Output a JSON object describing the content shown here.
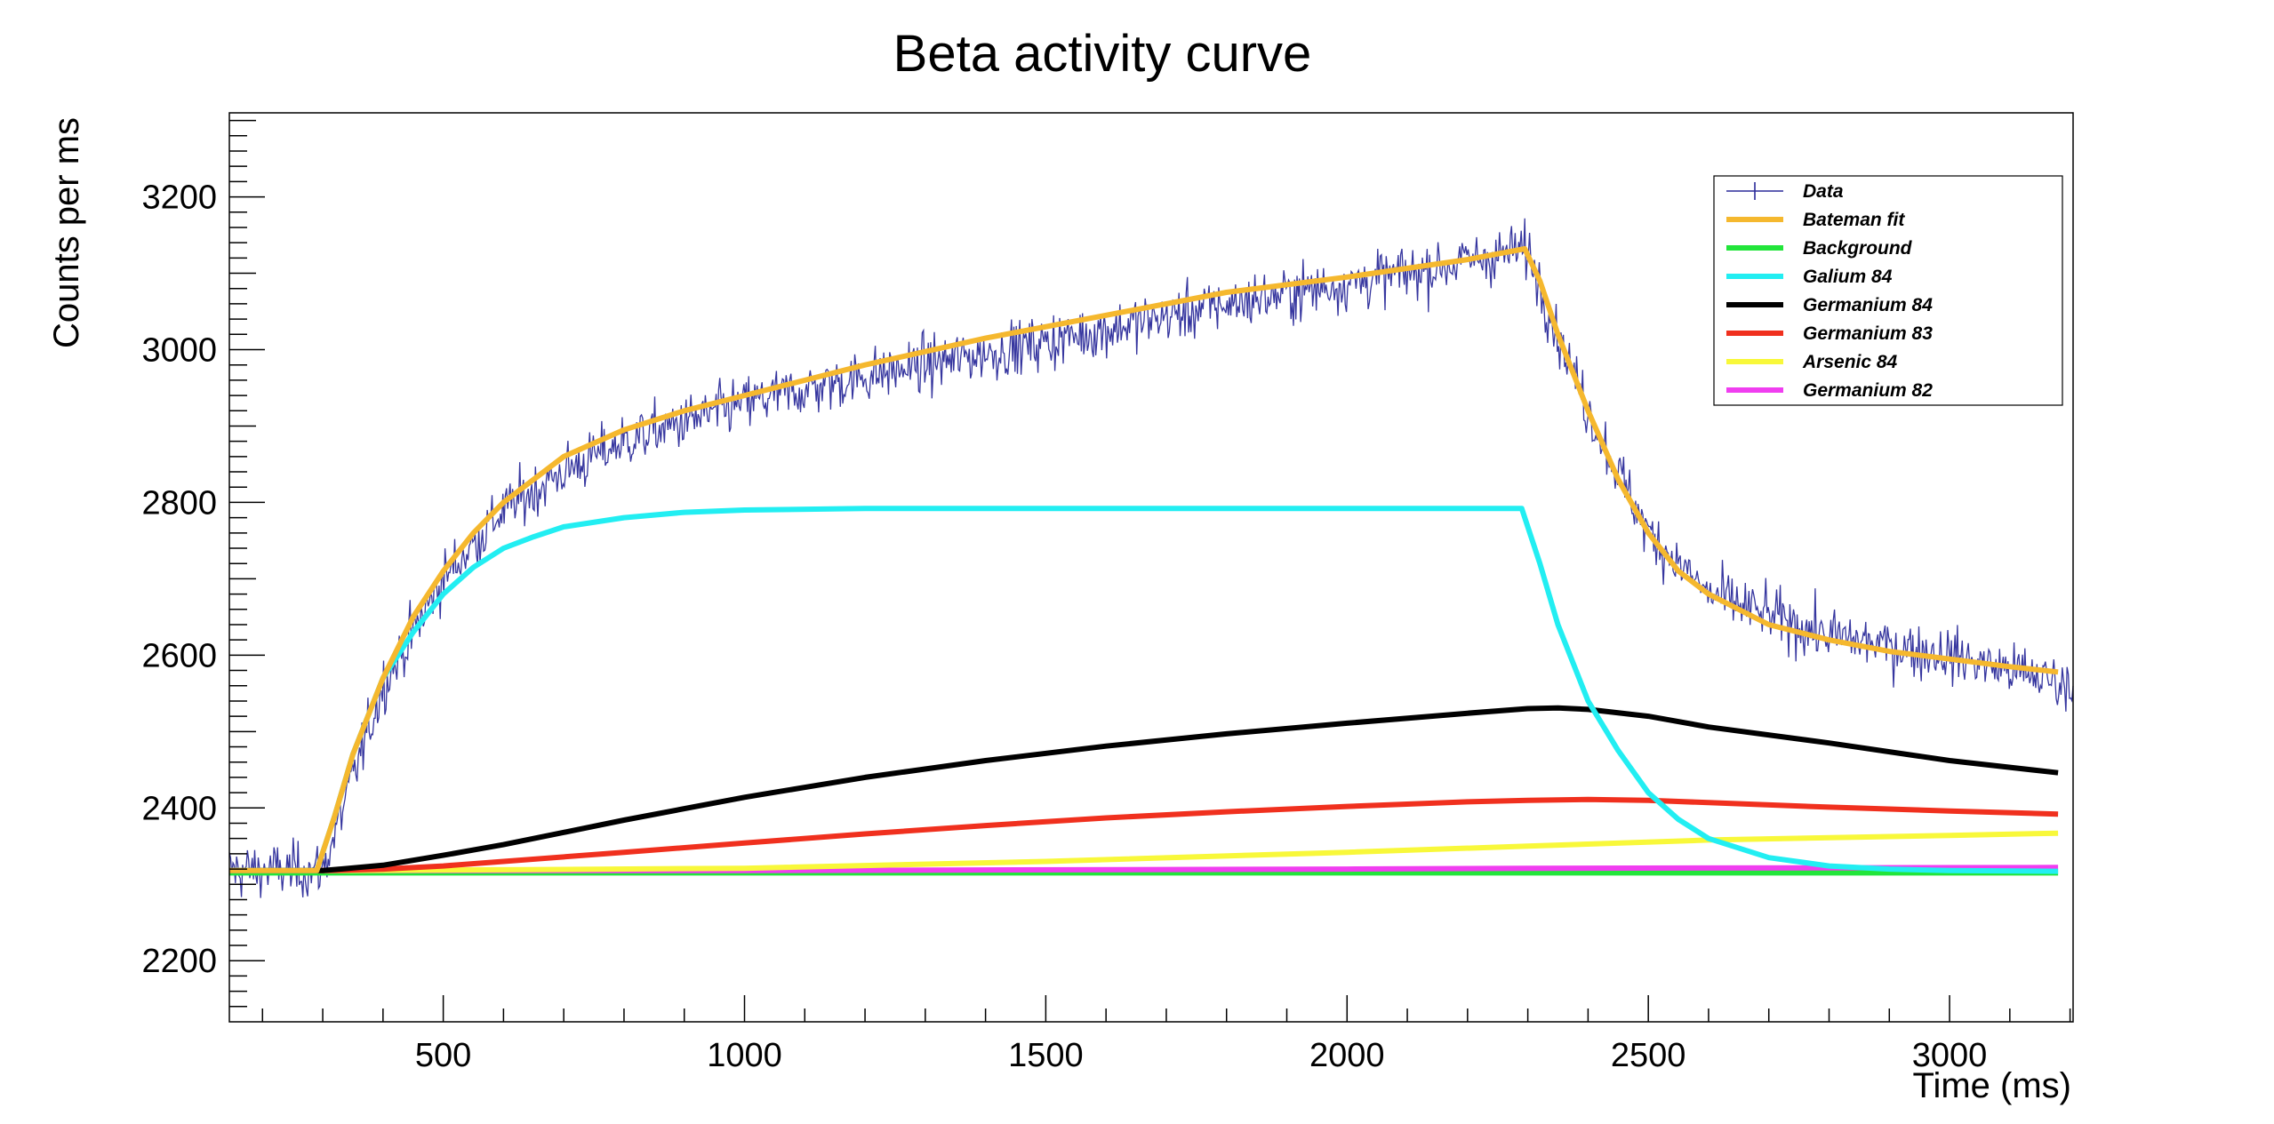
{
  "chart_data": {
    "type": "line",
    "title": "Beta activity curve",
    "xlabel": "Time (ms)",
    "ylabel": "Counts per ms",
    "xlim": [
      145,
      3205
    ],
    "ylim": [
      2120,
      3310
    ],
    "x_ticks": [
      500,
      1000,
      1500,
      2000,
      2500,
      3000
    ],
    "y_ticks": [
      2200,
      2400,
      2600,
      2800,
      3000,
      3200
    ],
    "grid": false,
    "legend_position": "top-right",
    "data_series": {
      "name": "Data",
      "color": "#2b2b9a",
      "bin_width_ms": 2,
      "noise_amplitude": 55,
      "envelope": {
        "x": [
          145,
          300,
          400,
          500,
          600,
          700,
          800,
          1000,
          1200,
          1500,
          1800,
          2100,
          2290,
          2300,
          2350,
          2400,
          2500,
          2600,
          2800,
          3000,
          3205
        ],
        "y": [
          2318,
          2318,
          2560,
          2700,
          2790,
          2840,
          2880,
          2930,
          2965,
          3010,
          3060,
          3100,
          3130,
          3130,
          3020,
          2920,
          2760,
          2680,
          2625,
          2600,
          2560
        ]
      }
    },
    "series": [
      {
        "name": "Bateman fit",
        "color": "#f5b82e",
        "x": [
          145,
          290,
          320,
          350,
          400,
          450,
          500,
          550,
          600,
          700,
          800,
          900,
          1000,
          1200,
          1400,
          1600,
          1800,
          2000,
          2200,
          2295,
          2320,
          2350,
          2400,
          2450,
          2500,
          2550,
          2600,
          2700,
          2800,
          2900,
          3000,
          3100,
          3180
        ],
        "y": [
          2318,
          2318,
          2390,
          2470,
          2570,
          2650,
          2710,
          2760,
          2800,
          2860,
          2895,
          2920,
          2940,
          2980,
          3015,
          3045,
          3075,
          3095,
          3118,
          3132,
          3090,
          3020,
          2920,
          2830,
          2760,
          2710,
          2680,
          2640,
          2620,
          2605,
          2595,
          2585,
          2578
        ]
      },
      {
        "name": "Background",
        "color": "#22e53a",
        "x": [
          145,
          3180
        ],
        "y": [
          2315,
          2315
        ]
      },
      {
        "name": "Galium 84",
        "color": "#22eef2",
        "x": [
          145,
          290,
          320,
          350,
          400,
          450,
          500,
          550,
          600,
          650,
          700,
          800,
          900,
          1000,
          1200,
          2290,
          2320,
          2350,
          2400,
          2450,
          2500,
          2550,
          2600,
          2700,
          2800,
          2900,
          3000,
          3180
        ],
        "y": [
          2318,
          2318,
          2390,
          2470,
          2570,
          2630,
          2680,
          2715,
          2740,
          2755,
          2768,
          2780,
          2787,
          2790,
          2792,
          2792,
          2720,
          2640,
          2540,
          2475,
          2420,
          2385,
          2360,
          2335,
          2324,
          2320,
          2318,
          2317
        ]
      },
      {
        "name": "Germanium 84",
        "color": "#000000",
        "x": [
          145,
          300,
          400,
          500,
          600,
          800,
          1000,
          1200,
          1400,
          1600,
          1800,
          2000,
          2200,
          2300,
          2350,
          2400,
          2500,
          2600,
          2800,
          3000,
          3180
        ],
        "y": [
          2318,
          2318,
          2325,
          2338,
          2352,
          2384,
          2414,
          2440,
          2462,
          2481,
          2497,
          2511,
          2524,
          2530,
          2531,
          2529,
          2520,
          2506,
          2485,
          2462,
          2446
        ]
      },
      {
        "name": "Germanium 83",
        "color": "#f0301e",
        "x": [
          145,
          300,
          400,
          500,
          600,
          800,
          1000,
          1200,
          1400,
          1600,
          1800,
          2000,
          2200,
          2300,
          2400,
          2500,
          2600,
          2800,
          3000,
          3180
        ],
        "y": [
          2318,
          2318,
          2320,
          2324,
          2330,
          2342,
          2354,
          2366,
          2377,
          2387,
          2395,
          2402,
          2408,
          2410,
          2411,
          2410,
          2407,
          2401,
          2396,
          2392
        ]
      },
      {
        "name": "Arsenic 84",
        "color": "#f8f83a",
        "x": [
          145,
          300,
          600,
          1000,
          1500,
          2000,
          2300,
          2600,
          3000,
          3180
        ],
        "y": [
          2318,
          2318,
          2319,
          2321,
          2330,
          2342,
          2350,
          2358,
          2364,
          2367
        ]
      },
      {
        "name": "Germanium 82",
        "color": "#f03ef0",
        "x": [
          145,
          300,
          1000,
          2000,
          2300,
          3180
        ],
        "y": [
          2318,
          2318,
          2318,
          2320,
          2321,
          2322
        ]
      }
    ],
    "legend": [
      "Data",
      "Bateman fit",
      "Background",
      "Galium 84",
      "Germanium 84",
      "Germanium 83",
      "Arsenic 84",
      "Germanium 82"
    ]
  }
}
